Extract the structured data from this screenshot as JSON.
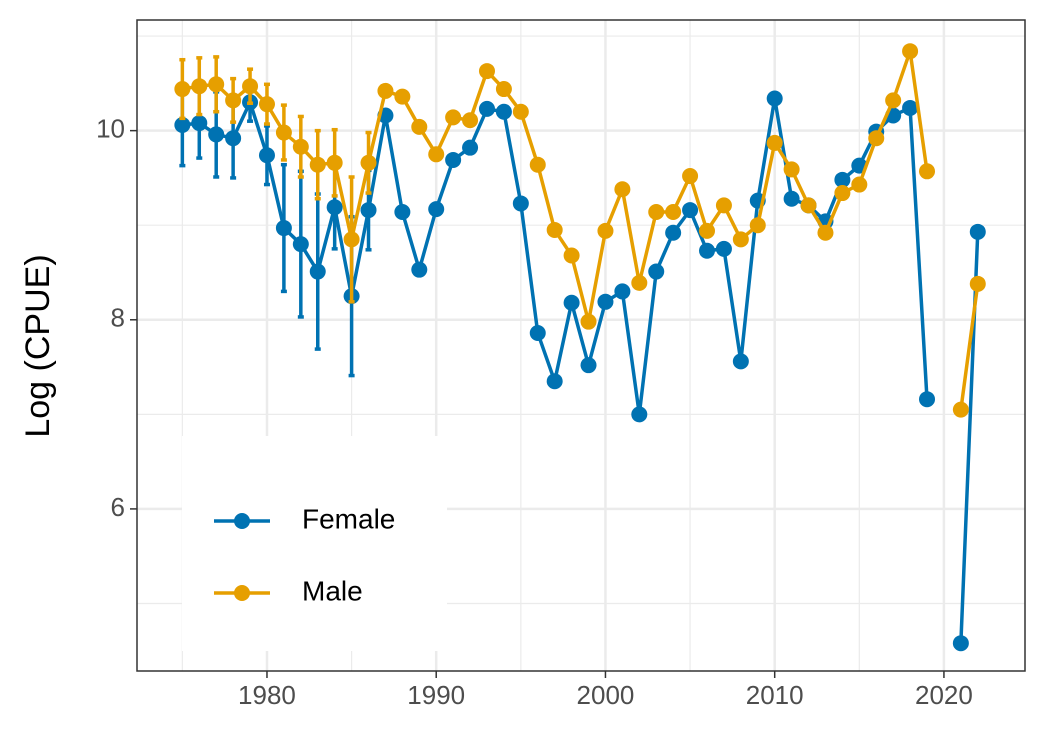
{
  "chart_data": {
    "type": "line",
    "y_label": "Log (CPUE)",
    "x": [
      1975,
      1976,
      1977,
      1978,
      1979,
      1980,
      1981,
      1982,
      1983,
      1984,
      1985,
      1986,
      1987,
      1988,
      1989,
      1990,
      1991,
      1992,
      1993,
      1994,
      1995,
      1996,
      1997,
      1998,
      1999,
      2000,
      2001,
      2002,
      2003,
      2004,
      2005,
      2006,
      2007,
      2008,
      2009,
      2010,
      2011,
      2012,
      2013,
      2014,
      2015,
      2016,
      2017,
      2018,
      2019,
      2020,
      2021,
      2022
    ],
    "series": [
      {
        "name": "Female",
        "color": "#0072B2",
        "values": [
          10.06,
          10.08,
          9.96,
          9.92,
          10.3,
          9.74,
          8.97,
          8.8,
          8.51,
          9.19,
          8.25,
          9.16,
          10.16,
          9.14,
          8.53,
          9.17,
          9.69,
          9.82,
          10.23,
          10.2,
          9.23,
          7.86,
          7.35,
          8.18,
          7.52,
          8.19,
          8.3,
          7.0,
          8.51,
          8.92,
          9.16,
          8.73,
          8.75,
          7.56,
          9.26,
          10.34,
          9.28,
          9.21,
          9.04,
          9.48,
          9.63,
          9.99,
          10.16,
          10.24,
          7.16,
          null,
          4.58,
          8.93
        ],
        "errors": [
          0.43,
          0.37,
          0.45,
          0.42,
          0.2,
          0.31,
          0.67,
          0.77,
          0.82,
          0.44,
          0.84,
          0.42,
          null,
          null,
          null,
          null,
          null,
          null,
          null,
          null,
          null,
          null,
          null,
          null,
          null,
          null,
          null,
          null,
          null,
          null,
          null,
          null,
          null,
          null,
          null,
          null,
          null,
          null,
          null,
          null,
          null,
          null,
          null,
          null,
          null,
          null,
          null,
          null
        ]
      },
      {
        "name": "Male",
        "color": "#E69F00",
        "values": [
          10.44,
          10.47,
          10.49,
          10.32,
          10.47,
          10.28,
          9.98,
          9.83,
          9.64,
          9.66,
          8.85,
          9.66,
          10.42,
          10.36,
          10.04,
          9.75,
          10.14,
          10.11,
          10.63,
          10.44,
          10.2,
          9.64,
          8.95,
          8.68,
          7.98,
          8.94,
          9.38,
          8.39,
          9.14,
          9.14,
          9.52,
          8.94,
          9.21,
          8.85,
          9.0,
          9.87,
          9.59,
          9.21,
          8.92,
          9.34,
          9.43,
          9.92,
          10.32,
          10.84,
          9.57,
          null,
          7.05,
          8.38
        ],
        "errors": [
          0.31,
          0.3,
          0.29,
          0.23,
          0.18,
          0.21,
          0.29,
          0.32,
          0.36,
          0.35,
          0.66,
          0.32,
          null,
          null,
          null,
          null,
          null,
          null,
          null,
          null,
          null,
          null,
          null,
          null,
          null,
          null,
          null,
          null,
          null,
          null,
          null,
          null,
          null,
          null,
          null,
          null,
          null,
          null,
          null,
          null,
          null,
          null,
          null,
          null,
          null,
          null,
          null,
          null
        ]
      }
    ],
    "xlim": [
      1972.32,
      2024.79
    ],
    "xticks": [
      1980,
      1990,
      2000,
      2010,
      2020
    ],
    "ylim": [
      4.286,
      11.17
    ],
    "yticks": [
      6,
      8,
      10
    ],
    "grid": true,
    "legend": "bottom-left"
  }
}
